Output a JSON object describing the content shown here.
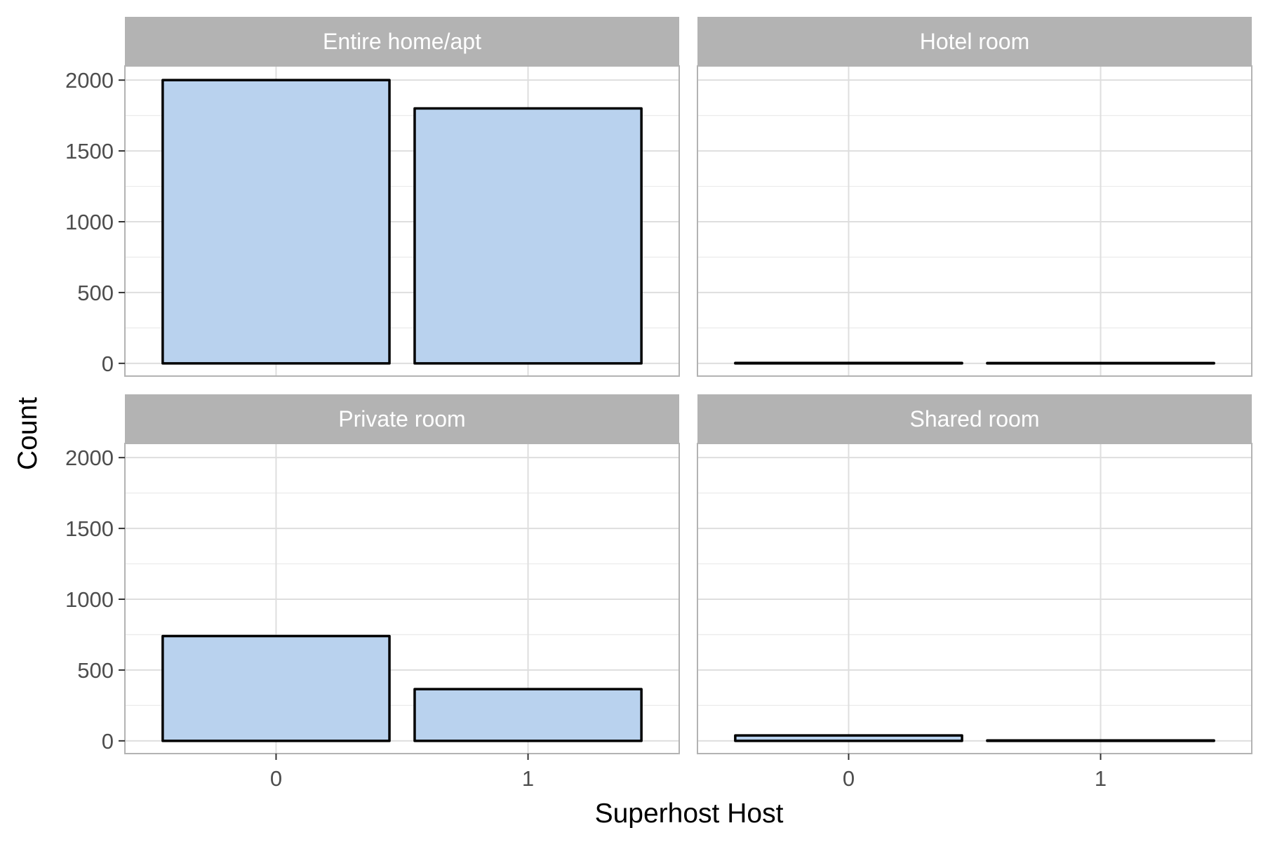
{
  "chart_data": {
    "type": "bar",
    "xlabel": "Superhost Host",
    "ylabel": "Count",
    "categories": [
      "0",
      "1"
    ],
    "yticks": [
      0,
      500,
      1000,
      1500,
      2000
    ],
    "ylim": [
      -90,
      2100
    ],
    "grid": true,
    "bar_fill": "#B9D2EE",
    "bar_stroke": "#000000",
    "strip_fill": "#B3B3B3",
    "panels": [
      {
        "name": "Entire home/apt",
        "values": [
          2000,
          1800
        ]
      },
      {
        "name": "Hotel room",
        "values": [
          3,
          2
        ]
      },
      {
        "name": "Private room",
        "values": [
          740,
          365
        ]
      },
      {
        "name": "Shared room",
        "values": [
          38,
          3
        ]
      }
    ]
  }
}
